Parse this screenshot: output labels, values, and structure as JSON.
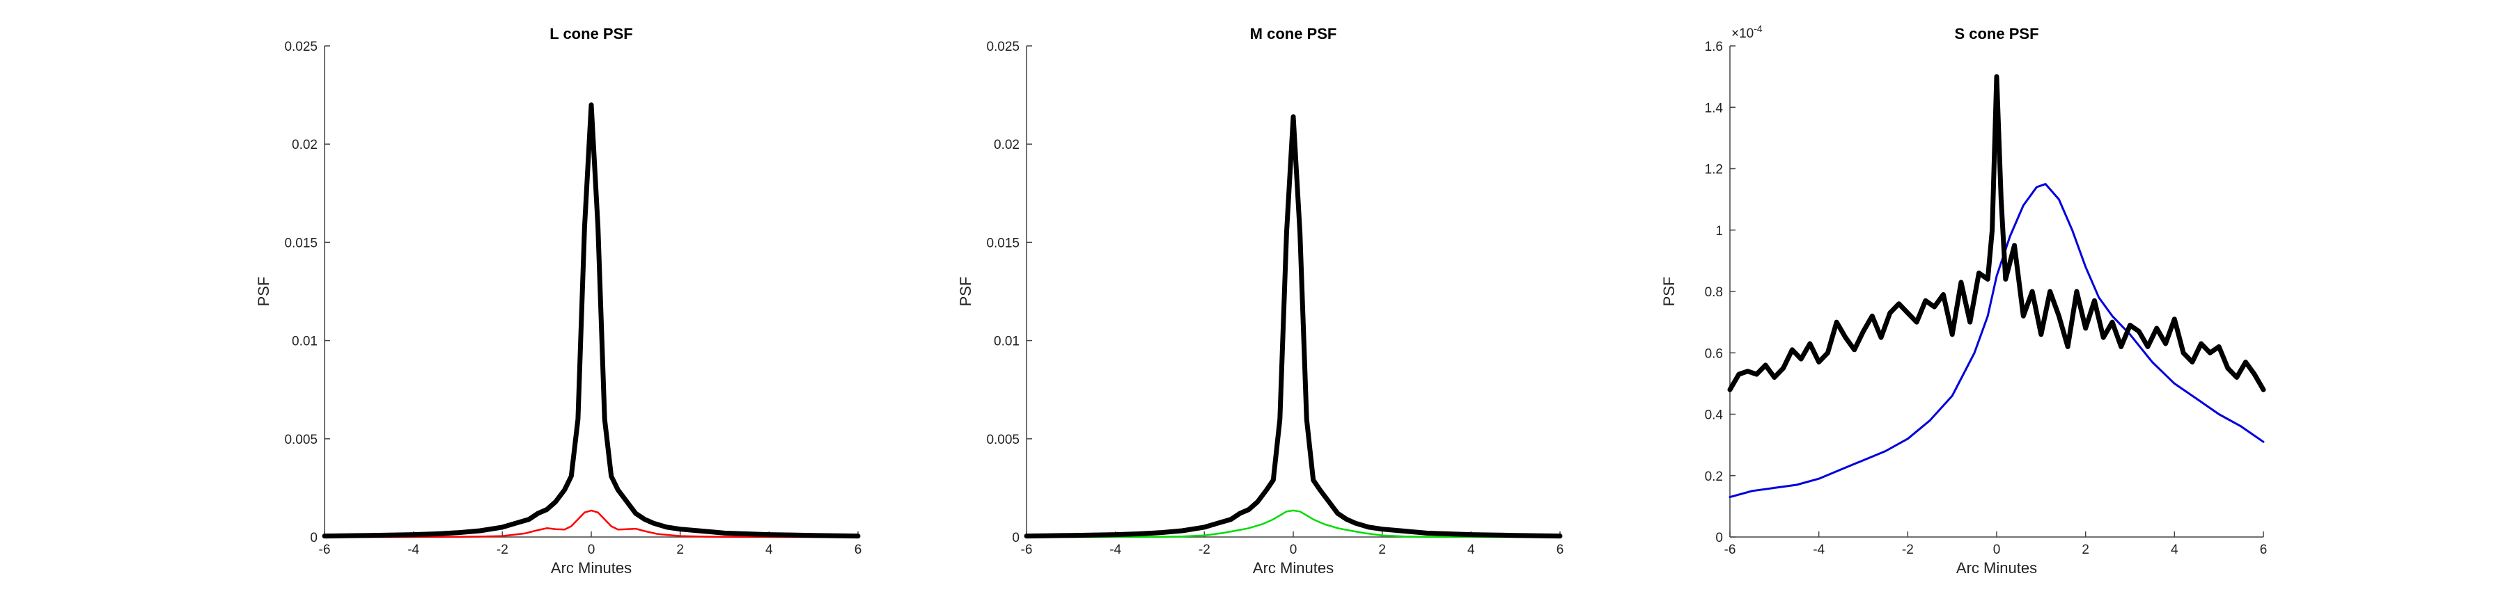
{
  "chart_data": [
    {
      "type": "line",
      "title": "L cone PSF",
      "xlabel": "Arc Minutes",
      "ylabel": "PSF",
      "xlim": [
        -6,
        6
      ],
      "ylim": [
        0,
        0.025
      ],
      "xticks": [
        "-6",
        "-4",
        "-2",
        "0",
        "2",
        "4",
        "6"
      ],
      "yticks": [
        "0",
        "0.005",
        "0.01",
        "0.015",
        "0.02",
        "0.025"
      ],
      "exponent_label": "",
      "grid": false,
      "series": [
        {
          "color": "#ff0000",
          "linewidth": 2.5,
          "x": [
            -6,
            -4,
            -3,
            -2.5,
            -2,
            -1.5,
            -1.2,
            -1.0,
            -0.8,
            -0.6,
            -0.45,
            -0.3,
            -0.15,
            0,
            0.15,
            0.3,
            0.45,
            0.6,
            0.8,
            1.0,
            1.2,
            1.5,
            2,
            2.5,
            3,
            4,
            6
          ],
          "y": [
            0,
            0,
            1e-05,
            2e-05,
            5e-05,
            0.00018,
            0.00035,
            0.00045,
            0.0004,
            0.00038,
            0.00055,
            0.0009,
            0.00125,
            0.00135,
            0.00125,
            0.0009,
            0.00055,
            0.00038,
            0.0004,
            0.00042,
            0.0003,
            0.00015,
            5e-05,
            2e-05,
            1e-05,
            0,
            0
          ]
        },
        {
          "color": "#000000",
          "linewidth": 7,
          "x": [
            -6,
            -5,
            -4,
            -3.5,
            -3,
            -2.5,
            -2,
            -1.7,
            -1.4,
            -1.2,
            -1.0,
            -0.8,
            -0.6,
            -0.45,
            -0.3,
            -0.15,
            0,
            0.15,
            0.3,
            0.45,
            0.6,
            0.8,
            1.0,
            1.2,
            1.4,
            1.7,
            2,
            2.5,
            3,
            3.5,
            4,
            5,
            6
          ],
          "y": [
            5e-05,
            8e-05,
            0.00012,
            0.00016,
            0.00022,
            0.00032,
            0.0005,
            0.0007,
            0.0009,
            0.0012,
            0.0014,
            0.0018,
            0.0024,
            0.0031,
            0.006,
            0.0158,
            0.022,
            0.0158,
            0.006,
            0.0031,
            0.0024,
            0.0018,
            0.0012,
            0.0009,
            0.0007,
            0.0005,
            0.0004,
            0.0003,
            0.0002,
            0.00016,
            0.00012,
            8e-05,
            5e-05
          ]
        }
      ]
    },
    {
      "type": "line",
      "title": "M cone PSF",
      "xlabel": "Arc Minutes",
      "ylabel": "PSF",
      "xlim": [
        -6,
        6
      ],
      "ylim": [
        0,
        0.025
      ],
      "xticks": [
        "-6",
        "-4",
        "-2",
        "0",
        "2",
        "4",
        "6"
      ],
      "yticks": [
        "0",
        "0.005",
        "0.01",
        "0.015",
        "0.02",
        "0.025"
      ],
      "exponent_label": "",
      "grid": false,
      "series": [
        {
          "color": "#00dd00",
          "linewidth": 2.5,
          "x": [
            -6,
            -4,
            -3,
            -2.5,
            -2,
            -1.6,
            -1.3,
            -1.0,
            -0.7,
            -0.45,
            -0.3,
            -0.15,
            0,
            0.15,
            0.3,
            0.45,
            0.7,
            1.0,
            1.3,
            1.6,
            2,
            2.5,
            3,
            4,
            6
          ],
          "y": [
            0,
            0,
            1e-05,
            3e-05,
            8e-05,
            0.0002,
            0.00032,
            0.00045,
            0.00065,
            0.0009,
            0.0011,
            0.0013,
            0.00135,
            0.0013,
            0.0011,
            0.0009,
            0.00065,
            0.00045,
            0.00032,
            0.0002,
            8e-05,
            3e-05,
            1e-05,
            0,
            0
          ]
        },
        {
          "color": "#000000",
          "linewidth": 7,
          "x": [
            -6,
            -5,
            -4,
            -3.5,
            -3,
            -2.5,
            -2,
            -1.7,
            -1.4,
            -1.2,
            -1.0,
            -0.8,
            -0.6,
            -0.45,
            -0.3,
            -0.15,
            0,
            0.15,
            0.3,
            0.45,
            0.6,
            0.8,
            1.0,
            1.2,
            1.4,
            1.7,
            2,
            2.5,
            3,
            3.5,
            4,
            5,
            6
          ],
          "y": [
            5e-05,
            8e-05,
            0.00012,
            0.00016,
            0.00022,
            0.00032,
            0.0005,
            0.0007,
            0.0009,
            0.0012,
            0.0014,
            0.0018,
            0.0024,
            0.0029,
            0.006,
            0.0155,
            0.0214,
            0.0155,
            0.006,
            0.0029,
            0.0024,
            0.0018,
            0.0012,
            0.0009,
            0.0007,
            0.0005,
            0.0004,
            0.0003,
            0.0002,
            0.00016,
            0.00012,
            8e-05,
            5e-05
          ]
        }
      ]
    },
    {
      "type": "line",
      "title": "S cone PSF",
      "xlabel": "Arc Minutes",
      "ylabel": "PSF",
      "xlim": [
        -6,
        6
      ],
      "ylim": [
        0,
        1.6
      ],
      "xticks": [
        "-6",
        "-4",
        "-2",
        "0",
        "2",
        "4",
        "6"
      ],
      "yticks": [
        "0",
        "0.2",
        "0.4",
        "0.6",
        "0.8",
        "1",
        "1.2",
        "1.4",
        "1.6"
      ],
      "exponent_label": "×10",
      "exponent_power": "-4",
      "grid": false,
      "series": [
        {
          "color": "#0000dd",
          "linewidth": 3,
          "x": [
            -6,
            -5.5,
            -5,
            -4.5,
            -4,
            -3.5,
            -3,
            -2.5,
            -2,
            -1.5,
            -1,
            -0.5,
            -0.2,
            0,
            0.3,
            0.6,
            0.9,
            1.1,
            1.4,
            1.7,
            2.0,
            2.3,
            2.6,
            3.0,
            3.5,
            4,
            4.5,
            5,
            5.5,
            6
          ],
          "y": [
            0.13,
            0.15,
            0.16,
            0.17,
            0.19,
            0.22,
            0.25,
            0.28,
            0.32,
            0.38,
            0.46,
            0.6,
            0.72,
            0.85,
            0.98,
            1.08,
            1.14,
            1.15,
            1.1,
            1.0,
            0.88,
            0.78,
            0.72,
            0.66,
            0.57,
            0.5,
            0.45,
            0.4,
            0.36,
            0.31
          ]
        },
        {
          "color": "#000000",
          "linewidth": 7,
          "x": [
            -6.0,
            -5.8,
            -5.6,
            -5.4,
            -5.2,
            -5.0,
            -4.8,
            -4.6,
            -4.4,
            -4.2,
            -4.0,
            -3.8,
            -3.6,
            -3.4,
            -3.2,
            -3.0,
            -2.8,
            -2.6,
            -2.4,
            -2.2,
            -2.0,
            -1.8,
            -1.6,
            -1.4,
            -1.2,
            -1.0,
            -0.8,
            -0.6,
            -0.4,
            -0.2,
            -0.1,
            0.0,
            0.1,
            0.2,
            0.4,
            0.6,
            0.8,
            1.0,
            1.2,
            1.4,
            1.6,
            1.8,
            2.0,
            2.2,
            2.4,
            2.6,
            2.8,
            3.0,
            3.2,
            3.4,
            3.6,
            3.8,
            4.0,
            4.2,
            4.4,
            4.6,
            4.8,
            5.0,
            5.2,
            5.4,
            5.6,
            5.8,
            6.0
          ],
          "y": [
            0.48,
            0.53,
            0.54,
            0.53,
            0.56,
            0.52,
            0.55,
            0.61,
            0.58,
            0.63,
            0.57,
            0.6,
            0.7,
            0.65,
            0.61,
            0.67,
            0.72,
            0.65,
            0.73,
            0.76,
            0.73,
            0.7,
            0.77,
            0.75,
            0.79,
            0.66,
            0.83,
            0.7,
            0.86,
            0.84,
            1.0,
            1.5,
            1.1,
            0.84,
            0.95,
            0.72,
            0.8,
            0.66,
            0.8,
            0.72,
            0.62,
            0.8,
            0.68,
            0.77,
            0.65,
            0.7,
            0.62,
            0.69,
            0.67,
            0.62,
            0.68,
            0.63,
            0.71,
            0.6,
            0.57,
            0.63,
            0.6,
            0.62,
            0.55,
            0.52,
            0.57,
            0.53,
            0.48
          ]
        }
      ]
    }
  ]
}
